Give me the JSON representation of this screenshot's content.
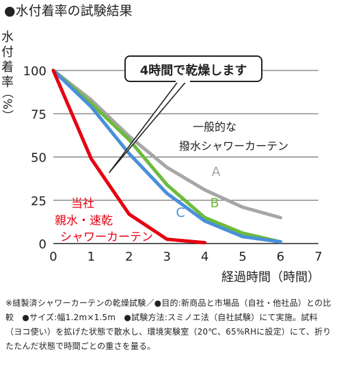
{
  "chart_data": {
    "type": "line",
    "title": "●水付着率の試験結果",
    "xlabel": "経過時間（時間）",
    "ylabel": "水付着率（%）",
    "ylabel_chars": [
      "水",
      "付",
      "着",
      "率",
      "（%）"
    ],
    "xlim": [
      0,
      7
    ],
    "ylim": [
      0,
      100
    ],
    "xticks": [
      0,
      1,
      2,
      3,
      4,
      5,
      6,
      7
    ],
    "yticks": [
      0,
      25,
      50,
      75,
      100
    ],
    "grid": "horizontal",
    "series": [
      {
        "name": "A",
        "label_lines": [
          "A"
        ],
        "color": "#a6a6a6",
        "points": [
          [
            0,
            100
          ],
          [
            1,
            83
          ],
          [
            2,
            62
          ],
          [
            3,
            44
          ],
          [
            4,
            31
          ],
          [
            5,
            21
          ],
          [
            6,
            15
          ]
        ]
      },
      {
        "name": "B",
        "label_lines": [
          "B"
        ],
        "color": "#6cbb3c",
        "points": [
          [
            0,
            100
          ],
          [
            1,
            81
          ],
          [
            2,
            60
          ],
          [
            3,
            34
          ],
          [
            4,
            15
          ],
          [
            5,
            6
          ],
          [
            6,
            1
          ]
        ]
      },
      {
        "name": "C",
        "label_lines": [
          "C"
        ],
        "color": "#4a90d9",
        "points": [
          [
            0,
            100
          ],
          [
            1,
            79
          ],
          [
            2,
            52
          ],
          [
            3,
            29
          ],
          [
            4,
            13
          ],
          [
            5,
            4
          ],
          [
            6,
            1
          ]
        ]
      },
      {
        "name": "当社 親水・速乾 シャワーカーテン",
        "label_lines": [
          "当社",
          "親水・速乾",
          "シャワーカーテン"
        ],
        "color": "#e60012",
        "points": [
          [
            0,
            100
          ],
          [
            1,
            49
          ],
          [
            2,
            17
          ],
          [
            3,
            2.5
          ],
          [
            4,
            0.5
          ]
        ]
      }
    ],
    "annotations": [
      {
        "text_lines": [
          "一般的な",
          "撥水シャワーカーテン"
        ],
        "color": "#222222"
      },
      {
        "text_lines": [
          "4時間で乾燥します"
        ],
        "color": "#222222",
        "callout": true
      }
    ]
  },
  "footnote": "※縫製済シャワーカーテンの乾燥試験／●目的:新商品と市場品（自社・他社品）との比較　●サイズ:幅1.2m×1.5m　●試験方法:スミノエ法（自社試験）にて実施。試料（ヨコ使い）を拡げた状態で散水し、環境実験室（20℃、65%RHに設定）にて、折りたたんだ状態で時間ごとの重さを量る。"
}
